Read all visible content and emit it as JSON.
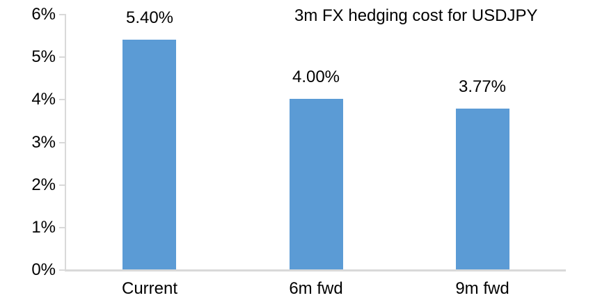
{
  "chart_data": {
    "type": "bar",
    "title": "3m FX hedging cost for USDJPY",
    "categories": [
      "Current",
      "6m fwd",
      "9m fwd"
    ],
    "values": [
      5.4,
      4.0,
      3.77
    ],
    "data_labels": [
      "5.40%",
      "4.00%",
      "3.77%"
    ],
    "xlabel": "",
    "ylabel": "",
    "ylim": [
      0,
      6
    ],
    "y_tick_labels": [
      "6%",
      "5%",
      "4%",
      "3%",
      "2%",
      "1%",
      "0%"
    ],
    "grid": false,
    "legend_position": "none",
    "colors": {
      "bar_fill": "#5B9BD5",
      "axis_line": "#D9D9D9",
      "text": "#000000",
      "background": "#FFFFFF"
    }
  }
}
